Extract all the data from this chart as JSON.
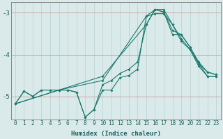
{
  "xlabel": "Humidex (Indice chaleur)",
  "bg_color": "#daeaea",
  "line_color": "#1a7a6e",
  "grid_color_v": "#b8d0d0",
  "grid_color_h": "#c8a8a8",
  "xlim": [
    -0.5,
    23.5
  ],
  "ylim": [
    -5.55,
    -2.75
  ],
  "yticks": [
    -5,
    -4,
    -3
  ],
  "xticks": [
    0,
    1,
    2,
    3,
    4,
    5,
    6,
    7,
    8,
    9,
    10,
    11,
    12,
    13,
    14,
    15,
    16,
    17,
    18,
    19,
    20,
    21,
    22,
    23
  ],
  "line1_x": [
    0,
    1,
    2,
    3,
    4,
    5,
    6,
    7,
    8,
    9,
    10,
    11,
    12,
    13,
    14,
    15,
    16,
    17,
    18,
    19,
    20,
    21,
    22,
    23
  ],
  "line1_y": [
    -5.18,
    -4.88,
    -5.0,
    -4.85,
    -4.85,
    -4.85,
    -4.85,
    -4.9,
    -5.5,
    -5.32,
    -4.85,
    -4.85,
    -4.55,
    -4.5,
    -4.35,
    -3.08,
    -3.02,
    -3.02,
    -3.28,
    -3.62,
    -3.88,
    -4.28,
    -4.52,
    -4.52
  ],
  "line2_x": [
    0,
    1,
    2,
    3,
    4,
    5,
    6,
    7,
    8,
    9,
    10,
    11,
    12,
    13,
    14,
    15,
    16,
    17,
    18,
    19,
    20,
    21,
    22,
    23
  ],
  "line2_y": [
    -5.18,
    -4.88,
    -5.0,
    -4.85,
    -4.85,
    -4.85,
    -4.85,
    -4.9,
    -5.5,
    -5.32,
    -4.72,
    -4.62,
    -4.45,
    -4.35,
    -4.18,
    -3.28,
    -2.92,
    -2.98,
    -3.42,
    -3.52,
    -3.82,
    -4.22,
    -4.42,
    -4.48
  ],
  "line3_x": [
    0,
    5,
    10,
    15,
    16,
    17,
    18,
    19,
    20,
    21,
    22,
    23
  ],
  "line3_y": [
    -5.18,
    -4.85,
    -4.62,
    -3.08,
    -2.92,
    -2.92,
    -3.28,
    -3.68,
    -3.88,
    -4.22,
    -4.52,
    -4.52
  ],
  "line4_x": [
    0,
    5,
    10,
    15,
    16,
    17,
    18,
    19,
    20,
    21,
    22,
    23
  ],
  "line4_y": [
    -5.18,
    -4.85,
    -4.52,
    -3.28,
    -2.92,
    -2.98,
    -3.52,
    -3.52,
    -3.82,
    -4.18,
    -4.42,
    -4.48
  ],
  "xlabel_fontsize": 6.5,
  "tick_fontsize": 5.5,
  "ytick_fontsize": 6.5
}
